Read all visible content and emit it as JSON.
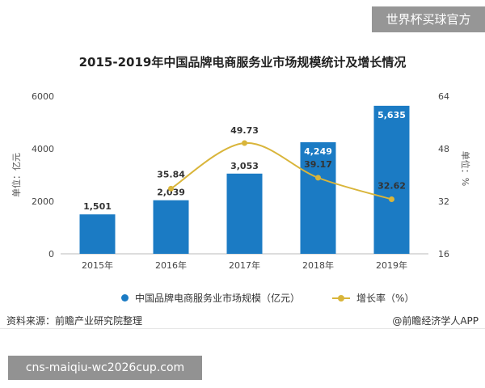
{
  "overlay": {
    "brand_tag": "世界杯买球官方",
    "url_tag": "cns-maiqiu-wc2026cup.com"
  },
  "source": {
    "left": "资料来源：前瞻产业研究院整理",
    "right": "@前瞻经济学人APP"
  },
  "legend": {
    "bars": "中国品牌电商服务业市场规模（亿元）",
    "line": "增长率（%）"
  },
  "colors": {
    "bar": "#1b7bc4",
    "line": "#d9b53a"
  },
  "chart_data": {
    "type": "bar",
    "title": "2015-2019年中国品牌电商服务业市场规模统计及增长情况",
    "categories": [
      "2015年",
      "2016年",
      "2017年",
      "2018年",
      "2019年"
    ],
    "series": [
      {
        "name": "中国品牌电商服务业市场规模（亿元）",
        "type": "bar",
        "axis": "left",
        "values": [
          1501,
          2039,
          3053,
          4249,
          5635
        ],
        "labels": [
          "1,501",
          "2,039",
          "3,053",
          "4,249",
          "5,635"
        ]
      },
      {
        "name": "增长率（%）",
        "type": "line",
        "axis": "right",
        "values": [
          null,
          35.84,
          49.73,
          39.17,
          32.62
        ],
        "labels": [
          "",
          "35.84",
          "49.73",
          "39.17",
          "32.62"
        ]
      }
    ],
    "ylabel_left": "单位：亿元",
    "ylabel_right": "单位：%",
    "ylim_left": [
      0,
      6000
    ],
    "ylim_right": [
      16,
      64
    ],
    "yticks_left": [
      "0",
      "2000",
      "4000",
      "6000"
    ],
    "yticks_right": [
      "16",
      "32",
      "48",
      "64"
    ],
    "grid": false,
    "legend_position": "bottom"
  }
}
